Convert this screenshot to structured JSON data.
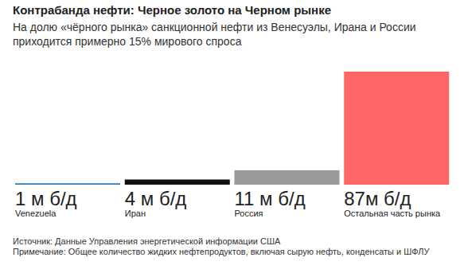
{
  "chart_data": {
    "type": "bar",
    "title": "Контрабанда нефти: Черное золото на Черном рынке",
    "subtitle": "На долю «чёрного рынка» санкционной нефти из Венесуэлы, Ирана и России приходится примерно 15% мирового спроса",
    "categories": [
      "Venezuela",
      "Иран",
      "Россия",
      "Остальная часть рынка"
    ],
    "values": [
      1,
      4,
      11,
      87
    ],
    "value_labels": [
      "1 м б/д",
      "4 м б/д",
      "11 м б/д",
      "87м б/д"
    ],
    "colors": [
      "#2a7ab8",
      "#111111",
      "#999999",
      "#ff6666"
    ],
    "ylim": [
      0,
      87
    ],
    "grid": false,
    "data_labels": true,
    "tick_labels": "x",
    "source": "Источник: Данные Управления энергетической информации США",
    "note": "Примечание: Общее количество жидких нефтепродуктов, включая сырую нефть, конденсаты и ШФЛУ"
  }
}
